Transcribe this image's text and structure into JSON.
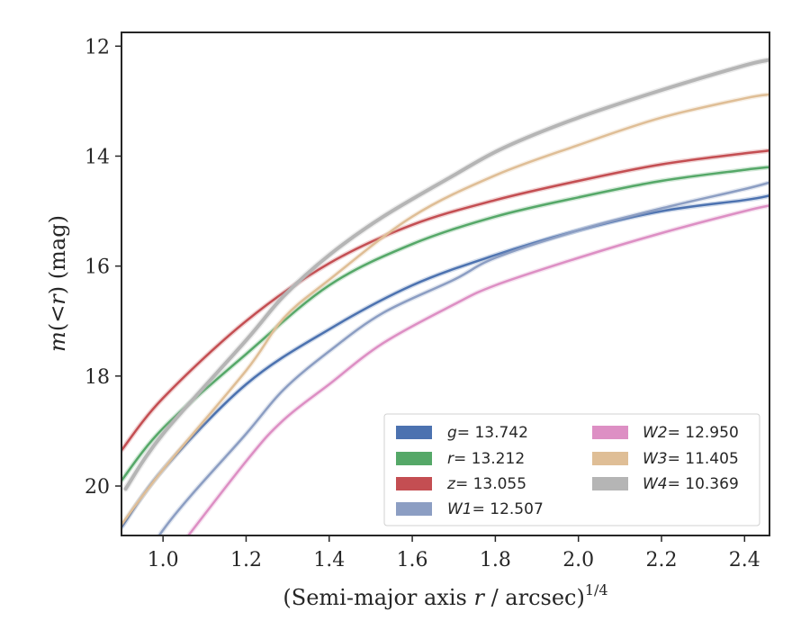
{
  "chart_data": {
    "type": "line",
    "title": "",
    "xlabel": "(Semi-major axis r / arcsec)",
    "xlabel_var": "r",
    "xlabel_exp": "1/4",
    "ylabel": "m(<r) (mag)",
    "xlim": [
      0.9,
      2.46
    ],
    "ylim": [
      20.9,
      11.75
    ],
    "y_inverted": true,
    "grid": false,
    "legend_position": "lower-right",
    "xticks": [
      "1.0",
      "1.2",
      "1.4",
      "1.6",
      "1.8",
      "2.0",
      "2.2",
      "2.4"
    ],
    "yticks": [
      "12",
      "14",
      "16",
      "18",
      "20"
    ],
    "series": [
      {
        "name": "g = 13.742",
        "label_var": "g",
        "label_val": "= 13.742",
        "color": "#4c72b0",
        "x": [
          0.9,
          1.0,
          1.2,
          1.4,
          1.6,
          1.8,
          2.0,
          2.2,
          2.4,
          2.46
        ],
        "y": [
          20.75,
          19.7,
          18.15,
          17.15,
          16.35,
          15.8,
          15.35,
          15.0,
          14.8,
          14.72
        ]
      },
      {
        "name": "r = 13.212",
        "label_var": "r",
        "label_val": "= 13.212",
        "color": "#55a868",
        "x": [
          0.9,
          1.0,
          1.2,
          1.4,
          1.6,
          1.8,
          2.0,
          2.2,
          2.4,
          2.46
        ],
        "y": [
          19.9,
          18.95,
          17.6,
          16.35,
          15.6,
          15.1,
          14.75,
          14.45,
          14.25,
          14.2
        ]
      },
      {
        "name": "z = 13.055",
        "label_var": "z",
        "label_val": "= 13.055",
        "color": "#c44e52",
        "x": [
          0.9,
          1.0,
          1.2,
          1.4,
          1.6,
          1.8,
          2.0,
          2.2,
          2.4,
          2.46
        ],
        "y": [
          19.35,
          18.4,
          17.0,
          15.95,
          15.25,
          14.8,
          14.45,
          14.15,
          13.95,
          13.9
        ]
      },
      {
        "name": "W1 = 12.507",
        "label_var": "W1",
        "label_val": "= 12.507",
        "color": "#8c9ec3",
        "x": [
          0.9,
          1.0,
          1.2,
          1.29,
          1.4,
          1.53,
          1.7,
          1.8,
          2.0,
          2.2,
          2.4,
          2.46
        ],
        "y": [
          22.2,
          20.8,
          19.05,
          18.25,
          17.55,
          16.85,
          16.25,
          15.85,
          15.35,
          14.95,
          14.6,
          14.48
        ]
      },
      {
        "name": "W2 = 12.950",
        "label_var": "W2",
        "label_val": "= 12.950",
        "color": "#dd8fc4",
        "x": [
          1.0,
          1.2,
          1.29,
          1.4,
          1.53,
          1.7,
          1.8,
          2.0,
          2.2,
          2.4,
          2.46
        ],
        "y": [
          21.5,
          19.55,
          18.8,
          18.15,
          17.4,
          16.7,
          16.35,
          15.85,
          15.4,
          15.0,
          14.9
        ]
      },
      {
        "name": "W3 = 11.405",
        "label_var": "W3",
        "label_val": "= 11.405",
        "color": "#dfbe96",
        "x": [
          0.9,
          1.0,
          1.2,
          1.29,
          1.4,
          1.6,
          1.8,
          2.0,
          2.2,
          2.4,
          2.46
        ],
        "y": [
          20.7,
          19.7,
          17.9,
          16.95,
          16.25,
          15.1,
          14.35,
          13.8,
          13.3,
          12.95,
          12.88
        ]
      },
      {
        "name": "W4 = 10.369",
        "label_var": "W4",
        "label_val": "= 10.369",
        "color": "#b5b5b5",
        "x": [
          0.91,
          1.0,
          1.2,
          1.29,
          1.4,
          1.53,
          1.7,
          1.82,
          2.0,
          2.2,
          2.4,
          2.46
        ],
        "y": [
          20.05,
          19.05,
          17.35,
          16.55,
          15.8,
          15.1,
          14.35,
          13.85,
          13.3,
          12.8,
          12.35,
          12.25
        ]
      }
    ]
  }
}
